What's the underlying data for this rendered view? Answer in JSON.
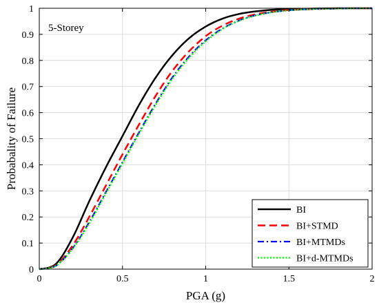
{
  "chart_data": {
    "type": "line",
    "annotation": "5-Storey",
    "xlabel": "PGA (g)",
    "ylabel": "Probabality of Failure",
    "xlim": [
      0,
      2
    ],
    "ylim": [
      0,
      1
    ],
    "xticks": [
      0,
      0.5,
      1,
      1.5,
      2
    ],
    "yticks": [
      0,
      0.1,
      0.2,
      0.3,
      0.4,
      0.5,
      0.6,
      0.7,
      0.8,
      0.9,
      1
    ],
    "grid": true,
    "legend_position": "bottom-right",
    "x": [
      0,
      0.1,
      0.2,
      0.3,
      0.4,
      0.5,
      0.6,
      0.7,
      0.8,
      0.9,
      1.0,
      1.1,
      1.2,
      1.3,
      1.4,
      1.5,
      1.6,
      1.7,
      1.8,
      1.9,
      2.0
    ],
    "series": [
      {
        "name": "BI",
        "color": "#000000",
        "dash": "solid",
        "values": [
          0,
          0.02,
          0.12,
          0.26,
          0.39,
          0.51,
          0.63,
          0.735,
          0.82,
          0.885,
          0.93,
          0.96,
          0.978,
          0.988,
          0.994,
          0.997,
          0.998,
          0.999,
          1.0,
          1.0,
          1.0
        ]
      },
      {
        "name": "BI+STMD",
        "color": "#ff0000",
        "dash": "dashed",
        "values": [
          0,
          0.015,
          0.09,
          0.2,
          0.32,
          0.44,
          0.555,
          0.665,
          0.76,
          0.835,
          0.893,
          0.933,
          0.96,
          0.977,
          0.987,
          0.993,
          0.996,
          0.998,
          0.999,
          1.0,
          1.0
        ]
      },
      {
        "name": "BI+MTMDs",
        "color": "#0000ff",
        "dash": "dashdot",
        "values": [
          0,
          0.013,
          0.08,
          0.18,
          0.295,
          0.41,
          0.525,
          0.635,
          0.735,
          0.815,
          0.877,
          0.922,
          0.953,
          0.973,
          0.985,
          0.992,
          0.996,
          0.998,
          0.999,
          1.0,
          1.0
        ]
      },
      {
        "name": "BI+d-MTMDs",
        "color": "#00ff00",
        "dash": "dotted",
        "values": [
          0,
          0.013,
          0.078,
          0.175,
          0.29,
          0.405,
          0.52,
          0.63,
          0.73,
          0.81,
          0.873,
          0.92,
          0.952,
          0.972,
          0.985,
          0.992,
          0.996,
          0.998,
          0.999,
          1.0,
          1.0
        ]
      }
    ]
  }
}
